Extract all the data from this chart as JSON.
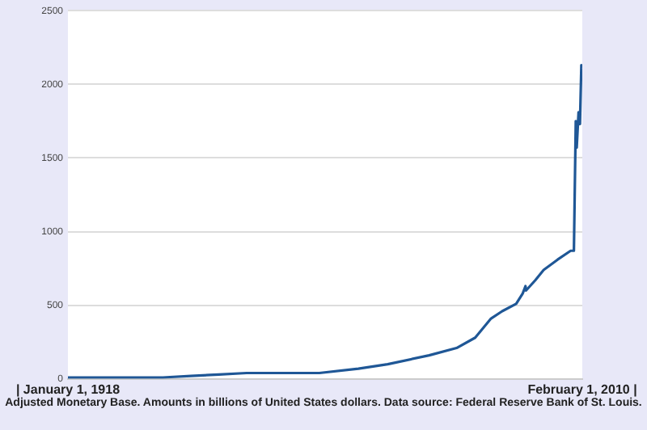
{
  "chart_data": {
    "type": "line",
    "x": [
      "1918-01",
      "1925-01",
      "1930-01",
      "1935-01",
      "1940-01",
      "1945-01",
      "1950-01",
      "1955-01",
      "1963-01",
      "1970-01",
      "1975-04",
      "1982-09",
      "1987-08",
      "1990-12",
      "1993-10",
      "1995-10",
      "1998-04",
      "1999-06",
      "1999-12",
      "2000-01",
      "2001-09",
      "2003-03",
      "2005-09",
      "2008-01",
      "2008-08",
      "2008-12",
      "2009-02",
      "2009-06",
      "2009-09",
      "2009-12",
      "2010-02"
    ],
    "series": [
      {
        "color": "#1f5796",
        "values": [
          10,
          10,
          10,
          10,
          20,
          30,
          40,
          40,
          40,
          70,
          100,
          160,
          210,
          280,
          410,
          460,
          510,
          580,
          630,
          600,
          670,
          740,
          810,
          870,
          870,
          1750,
          1570,
          1810,
          1730,
          2130,
          2110
        ]
      }
    ],
    "xlim": [
      "1918-01-01",
      "2010-02-01"
    ],
    "xticks": [
      {
        "value": "1918-01-01",
        "label": "| January 1, 1918"
      },
      {
        "value": "2010-02-01",
        "label": "February 1, 2010 |"
      }
    ],
    "ylim": [
      0,
      2500
    ],
    "yticks": [
      0,
      500,
      1000,
      1500,
      2000,
      2500
    ],
    "grid": "y",
    "legend": false,
    "marker": "none",
    "line_style": "solid",
    "annotations": [
      "Adjusted Monetary Base.  Amounts in billions of United States dollars.  Data source: Federal Reserve Bank of St. Louis."
    ]
  }
}
